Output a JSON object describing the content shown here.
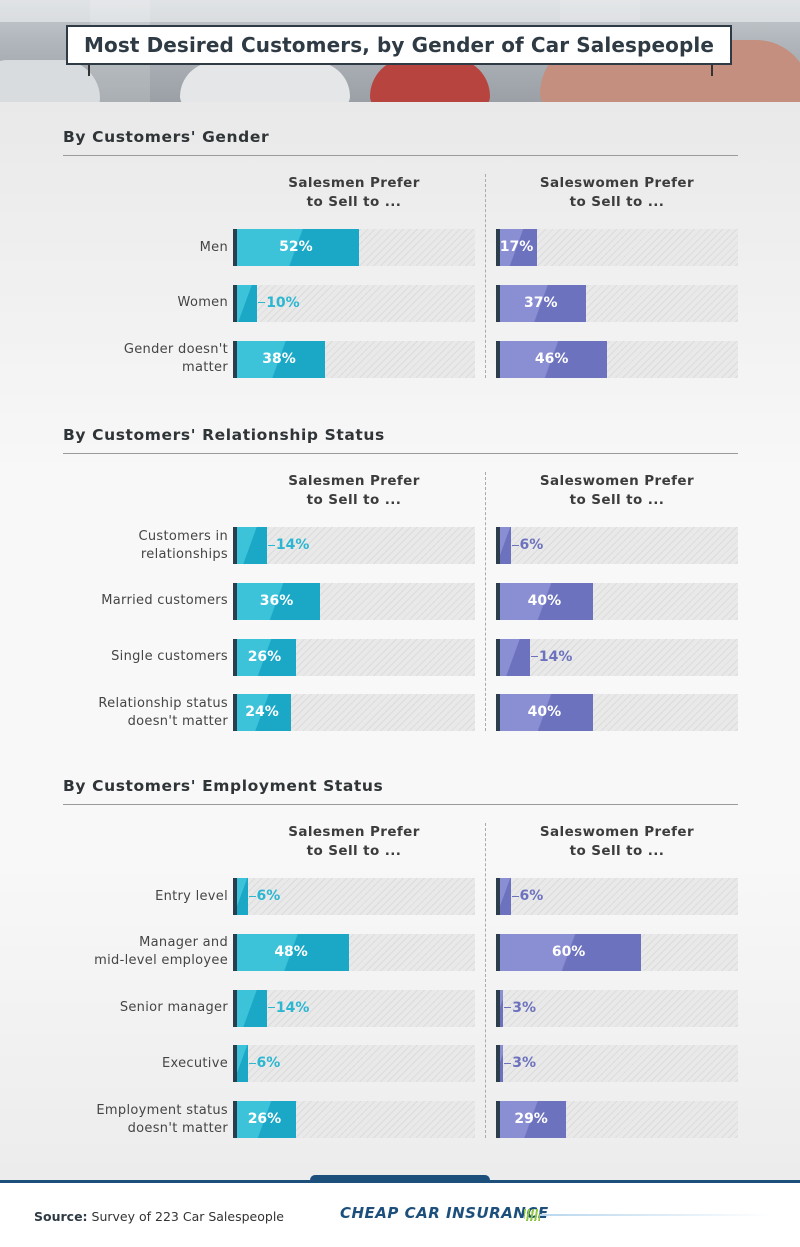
{
  "title": "Most Desired Customers, by Gender of Car Salespeople",
  "colors": {
    "salesmen": "#1ba8c7",
    "saleswomen": "#6c72be",
    "accent": "#1c4f7c"
  },
  "chart_data": [
    {
      "type": "bar",
      "title": "By Customers' Gender",
      "series_headers": [
        "Salesmen Prefer\nto Sell to ...",
        "Saleswomen Prefer\nto Sell to ..."
      ],
      "categories": [
        "Men",
        "Women",
        "Gender doesn't\nmatter"
      ],
      "unit": "%",
      "xlim": [
        0,
        100
      ],
      "series": [
        {
          "values": [
            52,
            10,
            38
          ]
        },
        {
          "values": [
            17,
            37,
            46
          ]
        }
      ]
    },
    {
      "type": "bar",
      "title": "By Customers' Relationship Status",
      "series_headers": [
        "Salesmen Prefer\nto Sell to ...",
        "Saleswomen Prefer\nto Sell to ..."
      ],
      "categories": [
        "Customers in\nrelationships",
        "Married customers",
        "Single customers",
        "Relationship status\ndoesn't matter"
      ],
      "unit": "%",
      "xlim": [
        0,
        100
      ],
      "series": [
        {
          "values": [
            14,
            36,
            26,
            24
          ]
        },
        {
          "values": [
            6,
            40,
            14,
            40
          ]
        }
      ]
    },
    {
      "type": "bar",
      "title": "By Customers' Employment Status",
      "series_headers": [
        "Salesmen Prefer\nto Sell to ...",
        "Saleswomen Prefer\nto Sell to ..."
      ],
      "categories": [
        "Entry level",
        "Manager and\nmid-level employee",
        "Senior manager",
        "Executive",
        "Employment status\ndoesn't matter"
      ],
      "unit": "%",
      "xlim": [
        0,
        100
      ],
      "series": [
        {
          "values": [
            6,
            48,
            14,
            6,
            26
          ]
        },
        {
          "values": [
            6,
            60,
            3,
            3,
            29
          ]
        }
      ]
    }
  ],
  "footer": {
    "source_label": "Source:",
    "source_text": "Survey of 223 Car Salespeople",
    "logo_text": "CHEAP CAR INSURANCE"
  }
}
